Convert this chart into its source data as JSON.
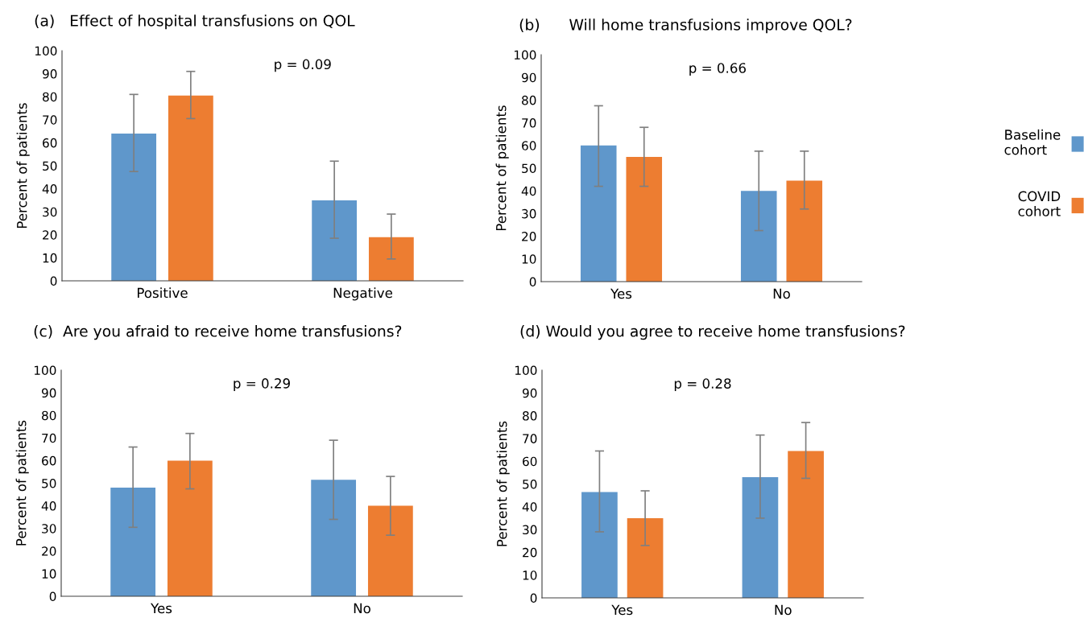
{
  "chart_data": [
    {
      "type": "bar",
      "title": "(a)   Effect of hospital transfusions on QOL",
      "ylabel": "Percent of patients",
      "categories": [
        "Positive",
        "Negative"
      ],
      "ylim": [
        0,
        100
      ],
      "yticks": [
        0,
        10,
        20,
        30,
        40,
        50,
        60,
        70,
        80,
        90,
        100
      ],
      "grid": false,
      "legend": "right",
      "annotations": [
        "p = 0.09"
      ],
      "series": [
        {
          "name": "Baseline\ncohort",
          "color": "#5f97cb",
          "values": [
            64,
            35
          ],
          "errors": [
            [
              47.5,
              81
            ],
            [
              18.5,
              52
            ]
          ]
        },
        {
          "name": "COVID\ncohort",
          "color": "#ed7d31",
          "values": [
            80.5,
            19
          ],
          "errors": [
            [
              70.5,
              91
            ],
            [
              9.5,
              29
            ]
          ]
        }
      ]
    },
    {
      "type": "bar",
      "title": "(b)      Will home transfusions improve QOL?",
      "ylabel": "Percent of patients",
      "categories": [
        "Yes",
        "No"
      ],
      "ylim": [
        0,
        100
      ],
      "yticks": [
        0,
        10,
        20,
        30,
        40,
        50,
        60,
        70,
        80,
        90,
        100
      ],
      "grid": false,
      "annotations": [
        "p = 0.66"
      ],
      "series": [
        {
          "color": "#5f97cb",
          "values": [
            60,
            40
          ],
          "errors": [
            [
              42,
              77.5
            ],
            [
              22.5,
              57.5
            ]
          ]
        },
        {
          "color": "#ed7d31",
          "values": [
            55,
            44.5
          ],
          "errors": [
            [
              42,
              68
            ],
            [
              32,
              57.5
            ]
          ]
        }
      ]
    },
    {
      "type": "bar",
      "title": "(c)  Are you afraid to receive home transfusions?",
      "ylabel": "Percent of patients",
      "categories": [
        "Yes",
        "No"
      ],
      "ylim": [
        0,
        100
      ],
      "yticks": [
        0,
        10,
        20,
        30,
        40,
        50,
        60,
        70,
        80,
        90,
        100
      ],
      "grid": false,
      "annotations": [
        "p = 0.29"
      ],
      "series": [
        {
          "color": "#5f97cb",
          "values": [
            48,
            51.5
          ],
          "errors": [
            [
              30.5,
              66
            ],
            [
              34,
              69
            ]
          ]
        },
        {
          "color": "#ed7d31",
          "values": [
            60,
            40
          ],
          "errors": [
            [
              47.5,
              72
            ],
            [
              27,
              53
            ]
          ]
        }
      ]
    },
    {
      "type": "bar",
      "title": "(d) Would you agree to receive home transfusions?",
      "ylabel": "Percent of patients",
      "categories": [
        "Yes",
        "No"
      ],
      "ylim": [
        0,
        100
      ],
      "yticks": [
        0,
        10,
        20,
        30,
        40,
        50,
        60,
        70,
        80,
        90,
        100
      ],
      "grid": false,
      "annotations": [
        "p = 0.28"
      ],
      "series": [
        {
          "color": "#5f97cb",
          "values": [
            46.5,
            53
          ],
          "errors": [
            [
              29,
              64.5
            ],
            [
              35,
              71.5
            ]
          ]
        },
        {
          "color": "#ed7d31",
          "values": [
            35,
            64.5
          ],
          "errors": [
            [
              23,
              47
            ],
            [
              52.5,
              77
            ]
          ]
        }
      ]
    }
  ]
}
